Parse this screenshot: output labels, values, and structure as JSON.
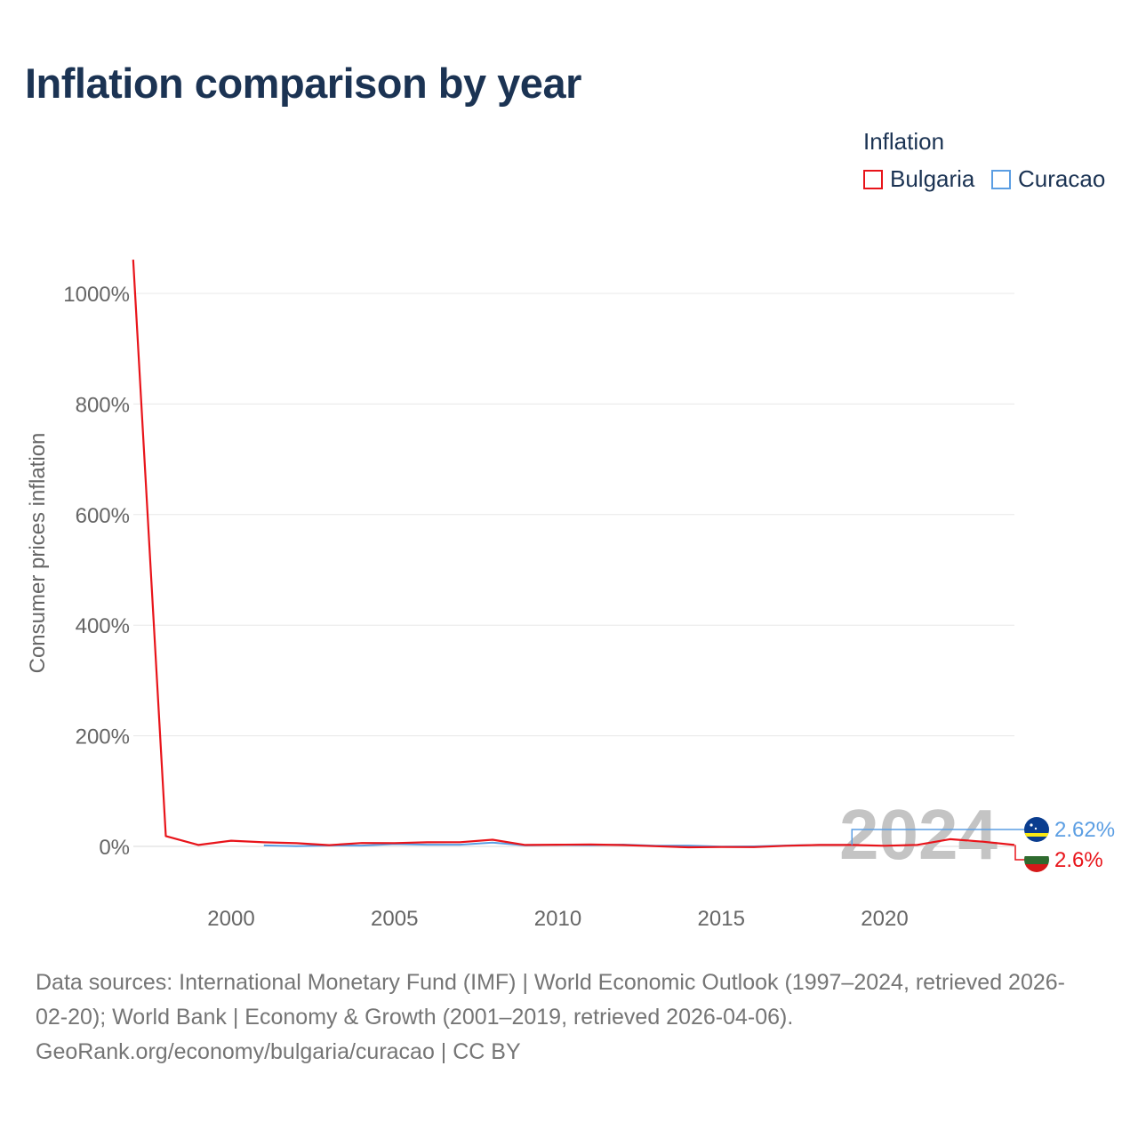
{
  "title": "Inflation comparison by year",
  "legend": {
    "title": "Inflation",
    "items": [
      {
        "label": "Bulgaria",
        "color": "#e8141a"
      },
      {
        "label": "Curacao",
        "color": "#5b9ee3"
      }
    ]
  },
  "chart_data": {
    "type": "line",
    "title": "Inflation comparison by year",
    "xlabel": "",
    "ylabel": "Consumer prices inflation",
    "xlim": [
      1997,
      2024
    ],
    "ylim": [
      -100,
      1050
    ],
    "yticks": [
      0,
      200,
      400,
      600,
      800,
      1000
    ],
    "ytick_labels": [
      "0%",
      "200%",
      "400%",
      "600%",
      "800%",
      "1000%"
    ],
    "xticks": [
      2000,
      2005,
      2010,
      2015,
      2020
    ],
    "xtick_labels": [
      "2000",
      "2005",
      "2010",
      "2015",
      "2020"
    ],
    "grid": true,
    "legend_position": "top-right",
    "watermark_year": "2024",
    "series": [
      {
        "name": "Bulgaria",
        "color": "#e8141a",
        "end_label": "2.6%",
        "x": [
          1997,
          1998,
          1999,
          2000,
          2001,
          2002,
          2003,
          2004,
          2005,
          2006,
          2007,
          2008,
          2009,
          2010,
          2011,
          2012,
          2013,
          2014,
          2015,
          2016,
          2017,
          2018,
          2019,
          2020,
          2021,
          2022,
          2023,
          2024
        ],
        "values": [
          1061,
          18.7,
          2.6,
          10.3,
          7.4,
          5.8,
          2.3,
          6.1,
          6.0,
          7.4,
          7.6,
          12.0,
          2.5,
          3.0,
          3.4,
          2.4,
          0.4,
          -1.6,
          -1.1,
          -1.3,
          1.2,
          2.6,
          2.5,
          1.2,
          2.8,
          13.0,
          8.6,
          2.6
        ]
      },
      {
        "name": "Curacao",
        "color": "#5b9ee3",
        "end_label": "2.62%",
        "x": [
          2001,
          2002,
          2003,
          2004,
          2005,
          2006,
          2007,
          2008,
          2009,
          2010,
          2011,
          2012,
          2013,
          2014,
          2015,
          2016,
          2017,
          2018,
          2019
        ],
        "values": [
          1.8,
          0.4,
          1.6,
          1.4,
          4.1,
          3.1,
          3.0,
          6.9,
          1.8,
          2.8,
          2.3,
          3.2,
          1.3,
          1.5,
          -0.5,
          0.0,
          1.6,
          2.6,
          2.6
        ]
      }
    ]
  },
  "footer": {
    "line1": "Data sources: International Monetary Fund (IMF) | World Economic Outlook (1997–2024, retrieved 2026-",
    "line2": "02-20); World Bank | Economy & Growth (2001–2019, retrieved 2026-04-06).",
    "line3": "GeoRank.org/economy/bulgaria/curacao | CC BY"
  }
}
